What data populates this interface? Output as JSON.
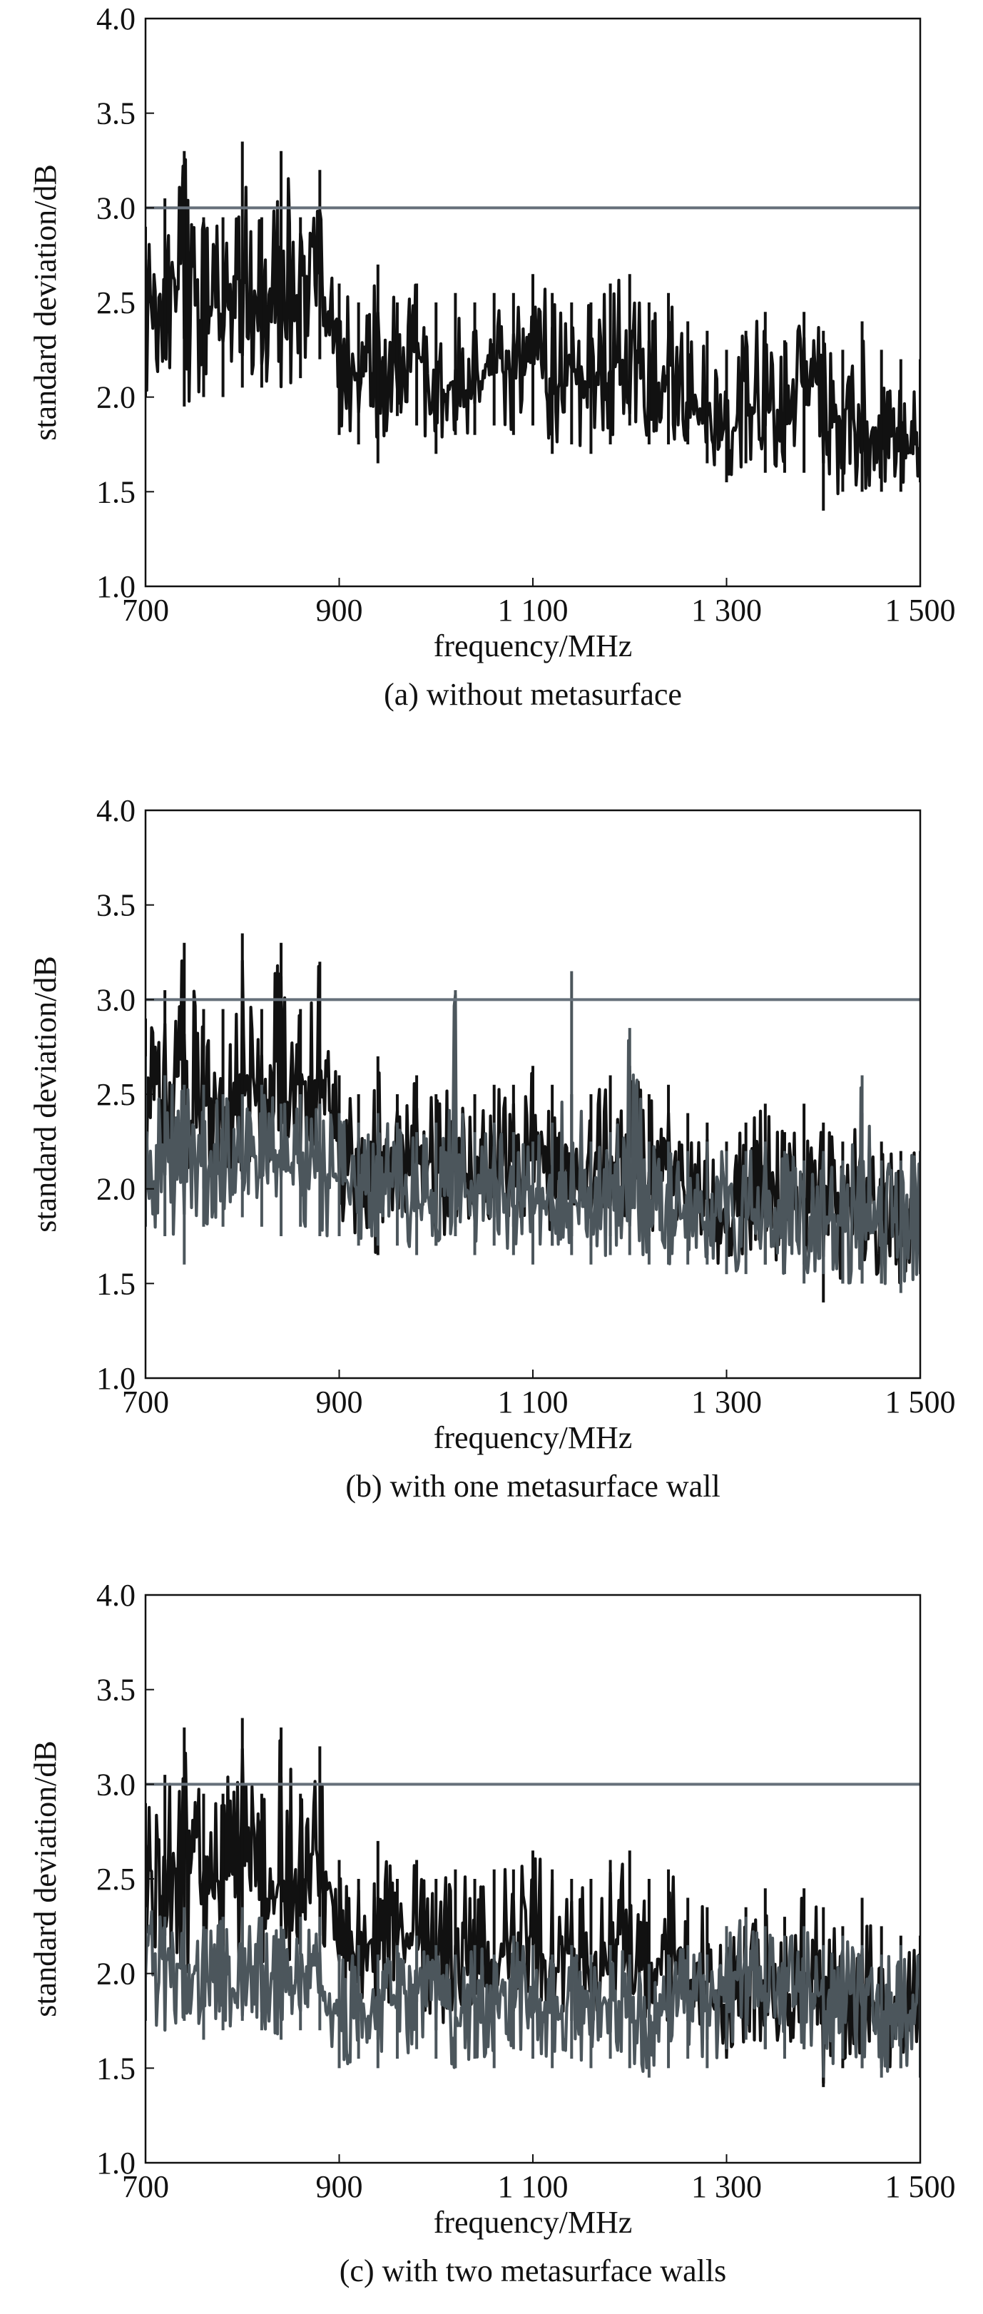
{
  "colors": {
    "without_metasurface_trace": "#111111",
    "metasurface_trace": "#4c565c",
    "threshold_line": "#66707a"
  },
  "chart_data": [
    {
      "type": "line",
      "caption": "(a) without metasurface",
      "xlabel": "frequency/MHz",
      "ylabel": "standard deviation/dB",
      "xlim": [
        700,
        1500
      ],
      "ylim": [
        1.0,
        4.0
      ],
      "x_ticks": [
        700,
        900,
        1100,
        1300,
        1500
      ],
      "x_tick_labels": [
        "700",
        "900",
        "1 100",
        "1 300",
        "1 500"
      ],
      "y_ticks": [
        1.0,
        1.5,
        2.0,
        2.5,
        3.0,
        3.5,
        4.0
      ],
      "y_tick_labels": [
        "1.0",
        "1.5",
        "2.0",
        "2.5",
        "3.0",
        "3.5",
        "4.0"
      ],
      "grid": false,
      "threshold": 3.0,
      "series": [
        {
          "color": "#111111",
          "x": [
            700,
            720,
            740,
            760,
            780,
            800,
            820,
            840,
            860,
            880,
            900,
            920,
            940,
            960,
            980,
            1000,
            1020,
            1040,
            1060,
            1080,
            1100,
            1120,
            1140,
            1160,
            1180,
            1200,
            1220,
            1240,
            1260,
            1280,
            1300,
            1320,
            1340,
            1360,
            1380,
            1400,
            1420,
            1440,
            1460,
            1480,
            1500
          ],
          "y": [
            2.5,
            2.6,
            2.7,
            2.5,
            2.45,
            2.6,
            2.4,
            2.4,
            2.6,
            2.65,
            2.2,
            2.1,
            2.2,
            2.15,
            2.25,
            2.0,
            2.1,
            2.05,
            2.15,
            2.1,
            2.2,
            2.0,
            2.15,
            2.05,
            2.1,
            2.25,
            2.05,
            2.1,
            2.0,
            1.95,
            1.8,
            1.9,
            1.95,
            1.85,
            1.95,
            2.0,
            1.85,
            1.9,
            1.8,
            1.85,
            1.9
          ],
          "y_min": [
            2.0,
            2.2,
            1.95,
            2.0,
            2.0,
            2.05,
            2.05,
            2.05,
            2.1,
            2.2,
            1.8,
            1.75,
            1.65,
            1.9,
            1.85,
            1.7,
            1.8,
            1.8,
            1.85,
            1.8,
            1.85,
            1.7,
            1.75,
            1.7,
            1.75,
            1.85,
            1.75,
            1.75,
            1.75,
            1.65,
            1.55,
            1.65,
            1.6,
            1.6,
            1.6,
            1.4,
            1.5,
            1.5,
            1.5,
            1.5,
            1.55
          ],
          "y_max": [
            2.9,
            3.05,
            3.3,
            2.95,
            2.95,
            3.35,
            2.95,
            3.3,
            2.95,
            3.2,
            2.6,
            2.5,
            2.7,
            2.5,
            2.6,
            2.5,
            2.55,
            2.5,
            2.55,
            2.55,
            2.65,
            2.55,
            2.5,
            2.5,
            2.6,
            2.65,
            2.5,
            2.55,
            2.4,
            2.35,
            2.25,
            2.35,
            2.45,
            2.3,
            2.45,
            2.35,
            2.25,
            2.4,
            2.25,
            2.2,
            2.2
          ]
        }
      ]
    },
    {
      "type": "line",
      "caption": "(b) with one metasurface wall",
      "xlabel": "frequency/MHz",
      "ylabel": "standard deviation/dB",
      "xlim": [
        700,
        1500
      ],
      "ylim": [
        1.0,
        4.0
      ],
      "x_ticks": [
        700,
        900,
        1100,
        1300,
        1500
      ],
      "x_tick_labels": [
        "700",
        "900",
        "1 100",
        "1 300",
        "1 500"
      ],
      "y_ticks": [
        1.0,
        1.5,
        2.0,
        2.5,
        3.0,
        3.5,
        4.0
      ],
      "y_tick_labels": [
        "1.0",
        "1.5",
        "2.0",
        "2.5",
        "3.0",
        "3.5",
        "4.0"
      ],
      "grid": false,
      "threshold": 3.0,
      "series": [
        {
          "color": "#111111",
          "x": [
            700,
            720,
            740,
            760,
            780,
            800,
            820,
            840,
            860,
            880,
            900,
            920,
            940,
            960,
            980,
            1000,
            1020,
            1040,
            1060,
            1080,
            1100,
            1120,
            1140,
            1160,
            1180,
            1200,
            1220,
            1240,
            1260,
            1280,
            1300,
            1320,
            1340,
            1360,
            1380,
            1400,
            1420,
            1440,
            1460,
            1480,
            1500
          ],
          "y": [
            2.5,
            2.6,
            2.7,
            2.5,
            2.45,
            2.6,
            2.4,
            2.4,
            2.6,
            2.65,
            2.2,
            2.1,
            2.2,
            2.15,
            2.25,
            2.0,
            2.1,
            2.05,
            2.15,
            2.1,
            2.2,
            2.0,
            2.15,
            2.05,
            2.1,
            2.25,
            2.05,
            2.1,
            2.0,
            1.95,
            1.8,
            1.9,
            1.95,
            1.85,
            1.95,
            2.0,
            1.85,
            1.9,
            1.8,
            1.85,
            1.9
          ],
          "y_min": [
            2.0,
            2.2,
            1.95,
            2.0,
            2.0,
            2.05,
            2.05,
            2.05,
            2.1,
            2.2,
            1.8,
            1.75,
            1.65,
            1.9,
            1.85,
            1.7,
            1.8,
            1.8,
            1.85,
            1.8,
            1.85,
            1.7,
            1.75,
            1.7,
            1.75,
            1.85,
            1.75,
            1.75,
            1.75,
            1.65,
            1.55,
            1.65,
            1.6,
            1.6,
            1.6,
            1.4,
            1.5,
            1.5,
            1.5,
            1.5,
            1.55
          ],
          "y_max": [
            2.9,
            3.05,
            3.3,
            2.95,
            2.95,
            3.35,
            2.95,
            3.3,
            2.95,
            3.2,
            2.6,
            2.5,
            2.7,
            2.5,
            2.6,
            2.5,
            2.55,
            2.5,
            2.55,
            2.55,
            2.65,
            2.55,
            2.5,
            2.5,
            2.6,
            2.65,
            2.5,
            2.55,
            2.4,
            2.35,
            2.25,
            2.35,
            2.45,
            2.3,
            2.45,
            2.35,
            2.25,
            2.4,
            2.25,
            2.2,
            2.2
          ]
        },
        {
          "color": "#4c565c",
          "x": [
            700,
            720,
            740,
            760,
            780,
            800,
            820,
            840,
            860,
            880,
            900,
            920,
            940,
            960,
            980,
            1000,
            1020,
            1040,
            1060,
            1080,
            1100,
            1120,
            1140,
            1160,
            1180,
            1200,
            1220,
            1240,
            1260,
            1280,
            1300,
            1320,
            1340,
            1360,
            1380,
            1400,
            1420,
            1440,
            1460,
            1480,
            1500
          ],
          "y": [
            2.25,
            2.2,
            2.15,
            2.2,
            2.1,
            2.15,
            2.2,
            2.1,
            2.15,
            2.1,
            2.05,
            2.0,
            2.05,
            2.0,
            1.95,
            2.0,
            2.05,
            1.95,
            2.0,
            1.95,
            1.9,
            2.0,
            1.95,
            1.9,
            1.95,
            1.95,
            1.9,
            1.9,
            1.85,
            1.9,
            1.85,
            1.85,
            1.9,
            1.85,
            1.8,
            1.85,
            1.8,
            1.85,
            1.8,
            1.8,
            1.85
          ],
          "y_min": [
            1.8,
            1.75,
            1.6,
            1.8,
            1.8,
            1.85,
            1.8,
            1.75,
            1.8,
            1.75,
            1.75,
            1.7,
            1.7,
            1.7,
            1.65,
            1.7,
            1.75,
            1.65,
            1.7,
            1.65,
            1.6,
            1.7,
            1.65,
            1.6,
            1.65,
            1.65,
            1.6,
            1.6,
            1.6,
            1.6,
            1.55,
            1.55,
            1.6,
            1.55,
            1.5,
            1.55,
            1.5,
            1.5,
            1.5,
            1.45,
            1.55
          ],
          "y_max": [
            2.7,
            2.6,
            2.55,
            2.55,
            2.5,
            2.5,
            2.55,
            2.45,
            2.5,
            2.45,
            2.4,
            2.35,
            2.4,
            2.35,
            2.3,
            2.35,
            3.05,
            2.3,
            2.35,
            2.3,
            2.25,
            2.35,
            3.15,
            2.25,
            2.3,
            2.85,
            2.25,
            2.25,
            2.2,
            2.25,
            2.2,
            2.2,
            2.25,
            2.2,
            2.15,
            2.2,
            2.15,
            2.6,
            2.15,
            2.15,
            2.2
          ]
        }
      ]
    },
    {
      "type": "line",
      "caption": "(c) with two metasurface walls",
      "xlabel": "frequency/MHz",
      "ylabel": "standard deviation/dB",
      "xlim": [
        700,
        1500
      ],
      "ylim": [
        1.0,
        4.0
      ],
      "x_ticks": [
        700,
        900,
        1100,
        1300,
        1500
      ],
      "x_tick_labels": [
        "700",
        "900",
        "1 100",
        "1 300",
        "1 500"
      ],
      "y_ticks": [
        1.0,
        1.5,
        2.0,
        2.5,
        3.0,
        3.5,
        4.0
      ],
      "y_tick_labels": [
        "1.0",
        "1.5",
        "2.0",
        "2.5",
        "3.0",
        "3.5",
        "4.0"
      ],
      "grid": false,
      "threshold": 3.0,
      "series": [
        {
          "color": "#111111",
          "x": [
            700,
            720,
            740,
            760,
            780,
            800,
            820,
            840,
            860,
            880,
            900,
            920,
            940,
            960,
            980,
            1000,
            1020,
            1040,
            1060,
            1080,
            1100,
            1120,
            1140,
            1160,
            1180,
            1200,
            1220,
            1240,
            1260,
            1280,
            1300,
            1320,
            1340,
            1360,
            1380,
            1400,
            1420,
            1440,
            1460,
            1480,
            1500
          ],
          "y": [
            2.5,
            2.6,
            2.7,
            2.5,
            2.45,
            2.6,
            2.4,
            2.4,
            2.6,
            2.65,
            2.2,
            2.1,
            2.2,
            2.15,
            2.25,
            2.0,
            2.1,
            2.05,
            2.15,
            2.1,
            2.2,
            2.0,
            2.15,
            2.05,
            2.1,
            2.25,
            2.05,
            2.1,
            2.0,
            1.95,
            1.8,
            1.9,
            1.95,
            1.85,
            1.95,
            2.0,
            1.85,
            1.9,
            1.8,
            1.85,
            1.9
          ],
          "y_min": [
            2.0,
            2.2,
            1.95,
            2.0,
            2.0,
            2.05,
            2.05,
            2.05,
            2.1,
            2.2,
            1.8,
            1.75,
            1.65,
            1.9,
            1.85,
            1.7,
            1.8,
            1.8,
            1.85,
            1.8,
            1.85,
            1.7,
            1.75,
            1.7,
            1.75,
            1.85,
            1.75,
            1.75,
            1.75,
            1.65,
            1.55,
            1.65,
            1.6,
            1.6,
            1.6,
            1.4,
            1.5,
            1.5,
            1.5,
            1.5,
            1.55
          ],
          "y_max": [
            2.9,
            3.05,
            3.3,
            2.95,
            2.95,
            3.35,
            2.95,
            3.3,
            2.95,
            3.2,
            2.6,
            2.5,
            2.7,
            2.5,
            2.6,
            2.5,
            2.55,
            2.5,
            2.55,
            2.55,
            2.65,
            2.55,
            2.5,
            2.5,
            2.6,
            2.65,
            2.5,
            2.55,
            2.4,
            2.35,
            2.25,
            2.35,
            2.45,
            2.3,
            2.45,
            2.35,
            2.25,
            2.4,
            2.25,
            2.2,
            2.2
          ]
        },
        {
          "color": "#4c565c",
          "x": [
            700,
            720,
            740,
            760,
            780,
            800,
            820,
            840,
            860,
            880,
            900,
            920,
            940,
            960,
            980,
            1000,
            1020,
            1040,
            1060,
            1080,
            1100,
            1120,
            1140,
            1160,
            1180,
            1200,
            1220,
            1240,
            1260,
            1280,
            1300,
            1320,
            1340,
            1360,
            1380,
            1400,
            1420,
            1440,
            1460,
            1480,
            1500
          ],
          "y": [
            2.05,
            2.0,
            2.05,
            1.95,
            2.0,
            2.05,
            2.0,
            1.95,
            2.0,
            2.0,
            1.8,
            1.85,
            1.8,
            1.85,
            1.9,
            1.85,
            1.8,
            1.85,
            1.8,
            1.9,
            1.85,
            1.8,
            1.85,
            1.8,
            1.85,
            1.8,
            1.75,
            1.8,
            1.85,
            1.8,
            1.95,
            2.0,
            1.95,
            1.9,
            1.95,
            1.85,
            1.9,
            1.85,
            1.8,
            1.85,
            1.8
          ],
          "y_min": [
            1.75,
            1.7,
            1.75,
            1.65,
            1.7,
            1.75,
            1.7,
            1.65,
            1.7,
            1.7,
            1.5,
            1.55,
            1.5,
            1.55,
            1.6,
            1.55,
            1.5,
            1.55,
            1.5,
            1.6,
            1.55,
            1.5,
            1.55,
            1.5,
            1.55,
            1.5,
            1.45,
            1.5,
            1.55,
            1.5,
            1.6,
            1.65,
            1.6,
            1.55,
            1.6,
            1.45,
            1.55,
            1.5,
            1.45,
            1.5,
            1.45
          ],
          "y_max": [
            2.35,
            2.3,
            2.35,
            2.25,
            2.3,
            2.35,
            2.3,
            2.25,
            2.3,
            2.3,
            2.1,
            2.15,
            2.1,
            2.15,
            2.2,
            2.15,
            2.1,
            2.15,
            2.1,
            2.2,
            2.15,
            2.1,
            2.15,
            2.1,
            2.15,
            2.1,
            2.05,
            2.1,
            2.15,
            2.1,
            2.25,
            2.3,
            2.25,
            2.2,
            2.25,
            2.15,
            2.2,
            2.15,
            2.1,
            2.15,
            2.1
          ]
        }
      ]
    }
  ]
}
